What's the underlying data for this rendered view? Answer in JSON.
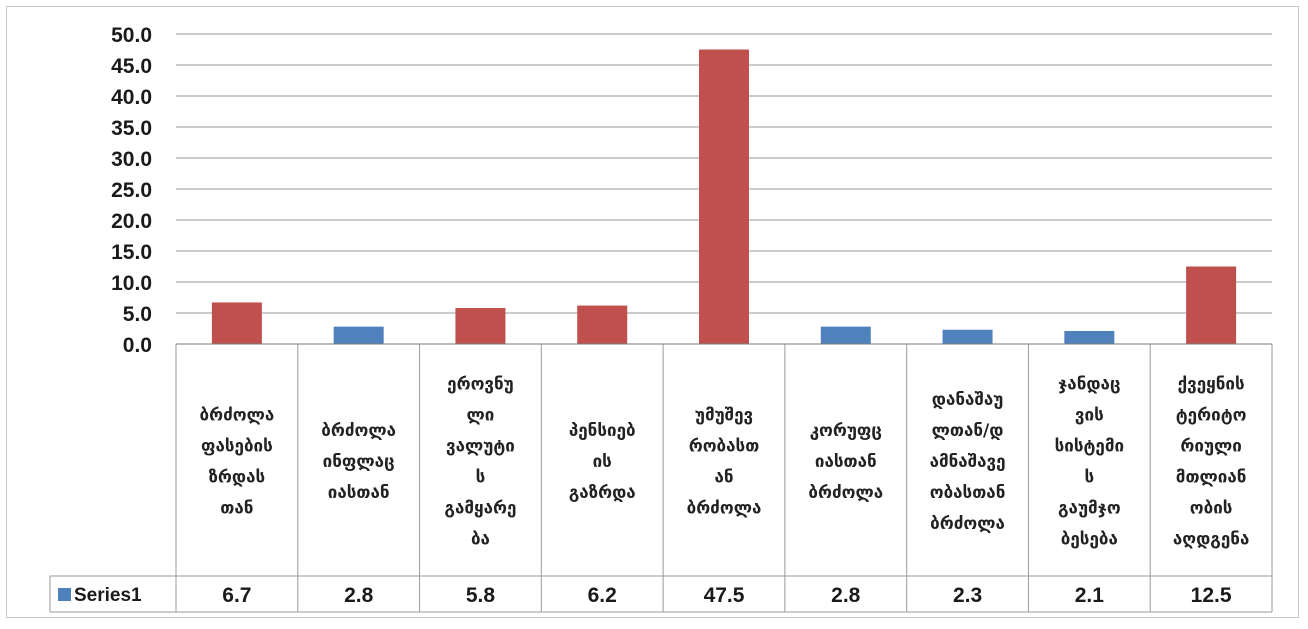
{
  "chart_data": {
    "type": "bar",
    "categories": [
      "ბრძოლა ფასების ზრდას თან",
      "ბრძოლა ინფლაც იასთან",
      "ეროვნუ ლი ვალუტი ს გამყარე ბა",
      "პენსიებ ის გაზრდა",
      "უმუშევ რობასთ ან ბრძოლა",
      "კორუფც იასთან ბრძოლა",
      "დანაშაუ ლთან/დ ამნაშავე ობასთან ბრძოლა",
      "ჯანდაც ვის სისტემი ს გაუმჯო ბესება",
      "ქვეყნის ტერიტო რიული მთლიან ობის აღდგენა"
    ],
    "category_lines": [
      [
        "ბრძოლა",
        "ფასების",
        "ზრდას",
        "თან"
      ],
      [
        "ბრძოლა",
        "ინფლაც",
        "იასთან"
      ],
      [
        "ეროვნუ",
        "ლი",
        "ვალუტი",
        "ს",
        "გამყარე",
        "ბა"
      ],
      [
        "პენსიებ",
        "ის",
        "გაზრდა"
      ],
      [
        "უმუშევ",
        "რობასთ",
        "ან",
        "ბრძოლა"
      ],
      [
        "კორუფც",
        "იასთან",
        "ბრძოლა"
      ],
      [
        "დანაშაუ",
        "ლთან/დ",
        "ამნაშავე",
        "ობასთან",
        "ბრძოლა"
      ],
      [
        "ჯანდაც",
        "ვის",
        "სისტემი",
        "ს",
        "გაუმჯო",
        "ბესება"
      ],
      [
        "ქვეყნის",
        "ტერიტო",
        "რიული",
        "მთლიან",
        "ობის",
        "აღდგენა"
      ]
    ],
    "series": [
      {
        "name": "Series1",
        "values": [
          6.7,
          2.8,
          5.8,
          6.2,
          47.5,
          2.8,
          2.3,
          2.1,
          12.5
        ],
        "value_labels": [
          "6.7",
          "2.8",
          "5.8",
          "6.2",
          "47.5",
          "2.8",
          "2.3",
          "2.1",
          "12.5"
        ]
      }
    ],
    "bar_colors": [
      "#c0504d",
      "#4f81bd",
      "#c0504d",
      "#c0504d",
      "#c0504d",
      "#4f81bd",
      "#4f81bd",
      "#4f81bd",
      "#c0504d"
    ],
    "legend_color": "#4f81bd",
    "ylim": [
      0,
      50
    ],
    "yticks": [
      "0.0",
      "5.0",
      "10.0",
      "15.0",
      "20.0",
      "25.0",
      "30.0",
      "35.0",
      "40.0",
      "45.0",
      "50.0"
    ],
    "grid": true,
    "data_table": true,
    "legend_position": "data-table-left",
    "title": "",
    "xlabel": "",
    "ylabel": ""
  }
}
